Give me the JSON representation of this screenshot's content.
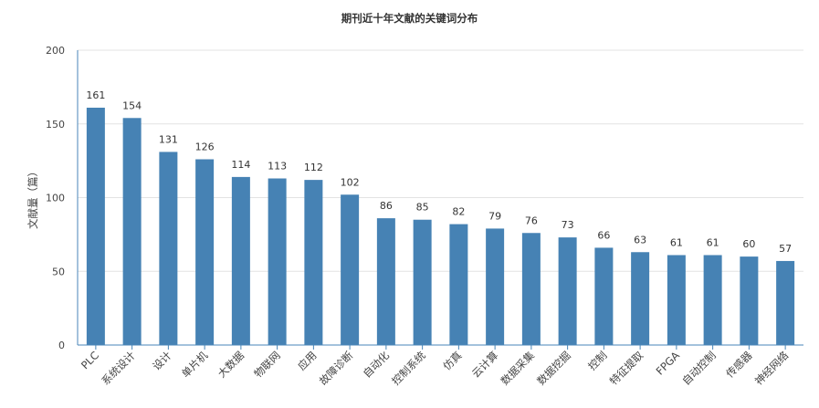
{
  "chart_data": {
    "type": "bar",
    "title": "期刊近十年文献的关键词分布",
    "ylabel": "文献量（篇）",
    "xlabel": "",
    "ylim": [
      0,
      200
    ],
    "yticks": [
      0,
      50,
      100,
      150,
      200
    ],
    "grid": true,
    "bar_color": "#4682b4",
    "categories": [
      "PLC",
      "系统设计",
      "设计",
      "单片机",
      "大数据",
      "物联网",
      "应用",
      "故障诊断",
      "自动化",
      "控制系统",
      "仿真",
      "云计算",
      "数据采集",
      "数据挖掘",
      "控制",
      "特征提取",
      "FPGA",
      "自动控制",
      "传感器",
      "神经网络"
    ],
    "values": [
      161,
      154,
      131,
      126,
      114,
      113,
      112,
      102,
      86,
      85,
      82,
      79,
      76,
      73,
      66,
      63,
      61,
      61,
      60,
      57
    ]
  }
}
